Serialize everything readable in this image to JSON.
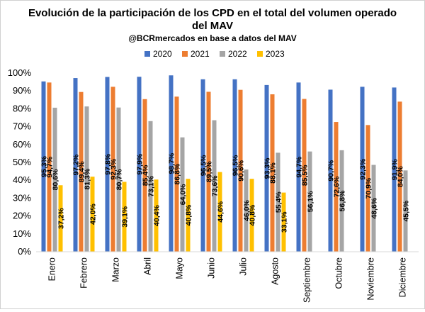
{
  "chart_data": {
    "type": "bar",
    "title_lines": [
      "Evolución de la participación de los CPD en el total del volumen operado",
      "del MAV"
    ],
    "subtitle": "@BCRmercados en base a datos del MAV",
    "xlabel": "",
    "ylabel": "",
    "ylim": [
      0,
      100
    ],
    "yticks": [
      "0%",
      "10%",
      "20%",
      "30%",
      "40%",
      "50%",
      "60%",
      "70%",
      "80%",
      "90%",
      "100%"
    ],
    "grid": false,
    "legend_position": "top",
    "categories": [
      "Enero",
      "Febrero",
      "Marzo",
      "Abril",
      "Mayo",
      "Junio",
      "Julio",
      "Agosto",
      "Septiembre",
      "Octubre",
      "Noviembre",
      "Diciembre"
    ],
    "series": [
      {
        "name": "2020",
        "color": "#4472C4",
        "values": [
          95.3,
          97.2,
          97.8,
          97.9,
          98.7,
          96.5,
          96.5,
          93.3,
          94.7,
          90.7,
          92.3,
          91.9
        ],
        "labels": [
          "95,3%",
          "97,2%",
          "97,8%",
          "97,9%",
          "98,7%",
          "96,5%",
          "96,5%",
          "93,3%",
          "94,7%",
          "90,7%",
          "92,3%",
          "91,9%"
        ]
      },
      {
        "name": "2021",
        "color": "#ED7D31",
        "values": [
          94.7,
          89.4,
          92.3,
          85.4,
          86.8,
          89.5,
          90.6,
          88.1,
          85.5,
          72.6,
          70.9,
          84.0
        ],
        "labels": [
          "94,7%",
          "89,4%",
          "92,3%",
          "85,4%",
          "86,8%",
          "89,5%",
          "90,6%",
          "88,1%",
          "85,5%",
          "72,6%",
          "70,9%",
          "84,0%"
        ]
      },
      {
        "name": "2022",
        "color": "#A5A5A5",
        "values": [
          80.6,
          81.3,
          80.7,
          73.1,
          64.0,
          73.6,
          46.0,
          55.4,
          56.1,
          56.8,
          48.6,
          45.5
        ],
        "labels": [
          "80,6%",
          "81,3%",
          "80,7%",
          "73,1%",
          "64,0%",
          "73,6%",
          "46,0%",
          "55,4%",
          "56,1%",
          "56,8%",
          "48,6%",
          "45,5%"
        ]
      },
      {
        "name": "2023",
        "color": "#FFC000",
        "values": [
          37.2,
          42.0,
          39.1,
          40.4,
          40.8,
          44.6,
          40.8,
          33.1,
          null,
          null,
          null,
          null
        ],
        "labels": [
          "37,2%",
          "42,0%",
          "39,1%",
          "40,4%",
          "40,8%",
          "44,6%",
          "40,8%",
          "33,1%",
          null,
          null,
          null,
          null
        ]
      }
    ]
  }
}
